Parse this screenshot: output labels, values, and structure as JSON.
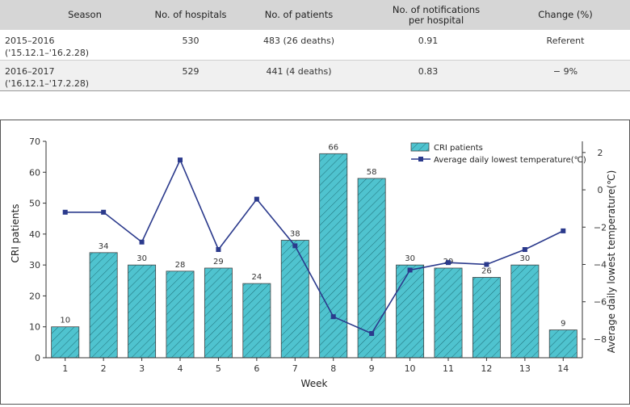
{
  "table": {
    "headers": [
      "Season",
      "No. of hospitals",
      "No. of patients",
      "No. of notifications per hospital",
      "Change (%)"
    ],
    "rows": [
      {
        "season": "2015–2016",
        "period": "('15.12.1–'16.2.28)",
        "hospitals": "530",
        "patients": "483 (26 deaths)",
        "notifications": "0.91",
        "change": "Referent"
      },
      {
        "season": "2016–2017",
        "period": "('16.12.1–'17.2.28)",
        "hospitals": "529",
        "patients": "441 (4 deaths)",
        "notifications": "0.83",
        "change": "− 9%"
      }
    ]
  },
  "chart_data": {
    "type": "bar+line",
    "xlabel": "Week",
    "ylabel": "CRI patients",
    "y2label": "Average daily lowest temperature(℃)",
    "categories": [
      "1",
      "2",
      "3",
      "4",
      "5",
      "6",
      "7",
      "8",
      "9",
      "10",
      "11",
      "12",
      "13",
      "14"
    ],
    "ylim": [
      0,
      70
    ],
    "yticks": [
      "0",
      "10",
      "20",
      "30",
      "40",
      "50",
      "60",
      "70"
    ],
    "y2lim": [
      -9,
      2.6
    ],
    "y2ticks": [
      "2",
      "0",
      "−2",
      "−4",
      "−6",
      "−8"
    ],
    "y2tick_values": [
      2,
      0,
      -2,
      -4,
      -6,
      -8
    ],
    "series": [
      {
        "name": "CRI patients",
        "kind": "bar",
        "color": "#4fc3cf",
        "values": [
          10,
          34,
          30,
          28,
          29,
          24,
          38,
          66,
          58,
          30,
          29,
          26,
          30,
          9
        ],
        "labels": [
          "10",
          "34",
          "30",
          "28",
          "29",
          "24",
          "38",
          "66",
          "58",
          "30",
          "29",
          "26",
          "30",
          "9"
        ]
      },
      {
        "name": "Average daily lowest temperature(℃)",
        "kind": "line",
        "axis": "right",
        "color": "#2b3a8c",
        "values": [
          -1.2,
          -1.2,
          -2.8,
          1.6,
          -3.2,
          -0.5,
          -3.0,
          -6.8,
          -7.7,
          -4.3,
          -3.9,
          -4.0,
          -3.2,
          -2.2
        ]
      }
    ],
    "legend_position": "top-right",
    "grid": false
  }
}
